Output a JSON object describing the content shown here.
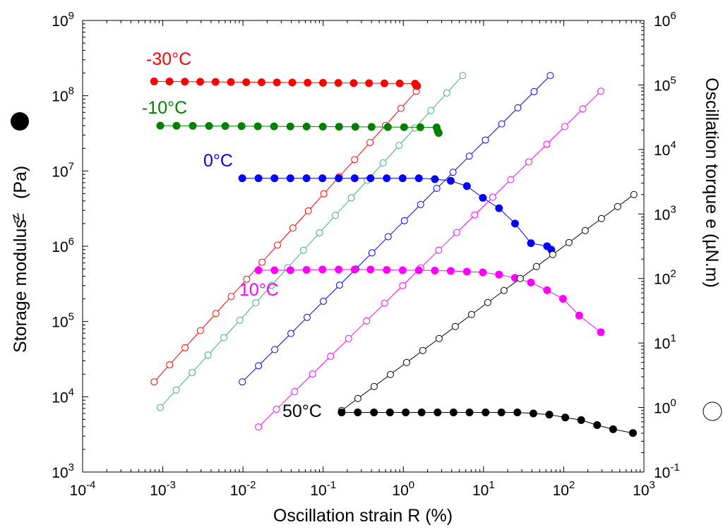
{
  "chart_data": {
    "type": "scatter",
    "xlabel": "Oscillation strain  R (%)",
    "ylabel_left": "Storage modulus",
    "ylabel_left_symbol": "(Pa)",
    "ylabel_right": "Oscillation torque  e  (µN.m)",
    "x_scale": "log",
    "y_left_scale": "log",
    "y_right_scale": "log",
    "xlim": [
      0.0001,
      1000
    ],
    "ylim_left": [
      1000,
      1000000000
    ],
    "ylim_right": [
      0.1,
      1000000
    ],
    "x_ticks": [
      {
        "base": "10",
        "exp": "-4"
      },
      {
        "base": "10",
        "exp": "-3"
      },
      {
        "base": "10",
        "exp": "-2"
      },
      {
        "base": "10",
        "exp": "-1"
      },
      {
        "base": "10",
        "exp": "0"
      },
      {
        "base": "10",
        "exp": "1"
      },
      {
        "base": "10",
        "exp": "2"
      },
      {
        "base": "10",
        "exp": "3"
      }
    ],
    "y_left_ticks": [
      {
        "base": "10",
        "exp": "3"
      },
      {
        "base": "10",
        "exp": "4"
      },
      {
        "base": "10",
        "exp": "5"
      },
      {
        "base": "10",
        "exp": "6"
      },
      {
        "base": "10",
        "exp": "7"
      },
      {
        "base": "10",
        "exp": "8"
      },
      {
        "base": "10",
        "exp": "9"
      }
    ],
    "y_right_ticks": [
      {
        "base": "10",
        "exp": "-1"
      },
      {
        "base": "10",
        "exp": "0"
      },
      {
        "base": "10",
        "exp": "1"
      },
      {
        "base": "10",
        "exp": "2"
      },
      {
        "base": "10",
        "exp": "3"
      },
      {
        "base": "10",
        "exp": "4"
      },
      {
        "base": "10",
        "exp": "5"
      },
      {
        "base": "10",
        "exp": "6"
      }
    ],
    "grid": false,
    "legend": "none",
    "series": [
      {
        "name": "-30°C",
        "color": "#ff0000",
        "modulus": {
          "axis": "left",
          "marker": "filled",
          "start_strain": 0.00078,
          "end_strain": 1.4,
          "start_value": 155000000,
          "end_value": 145000000,
          "count": 18,
          "final_values": [
            137000000,
            135000000
          ]
        },
        "torque": {
          "axis": "right",
          "marker": "open",
          "start_strain": 0.00078,
          "end_strain": 1.45,
          "start_value": 2.5,
          "end_value": 80000,
          "count": 18
        }
      },
      {
        "name": "-10°C",
        "color": "#008000",
        "torque_color": "#3cb371",
        "modulus": {
          "axis": "left",
          "marker": "filled",
          "start_strain": 0.00093,
          "end_strain": 2.6,
          "start_value": 40000000,
          "end_value": 38000000,
          "count": 18,
          "final_values": [
            34000000,
            32000000
          ]
        },
        "torque": {
          "axis": "right",
          "marker": "open",
          "start_strain": 0.00093,
          "end_strain": 5.5,
          "start_value": 1.0,
          "end_value": 140000,
          "count": 20
        }
      },
      {
        "name": "0°C",
        "color": "#0000ff",
        "modulus": {
          "axis": "left",
          "marker": "filled",
          "strain": [
            0.0098,
            0.0156,
            0.0247,
            0.039,
            0.062,
            0.098,
            0.156,
            0.247,
            0.39,
            0.62,
            0.98,
            1.56,
            2.47,
            3.9,
            6.2,
            9.8,
            15.6,
            24.7,
            39,
            62,
            70
          ],
          "value": [
            8000000,
            8000000,
            8000000,
            8000000,
            8000000,
            8000000,
            8000000,
            8000000,
            8000000,
            8000000,
            8000000,
            8000000,
            7800000,
            7400000,
            6300000,
            4400000,
            3200000,
            2000000,
            1100000,
            1000000,
            900000
          ]
        },
        "torque": {
          "axis": "right",
          "marker": "open",
          "start_strain": 0.0098,
          "end_strain": 68,
          "start_value": 2.5,
          "end_value": 140000,
          "count": 20
        }
      },
      {
        "name": "10°C",
        "color": "#ff00ff",
        "modulus": {
          "axis": "left",
          "marker": "filled",
          "strain": [
            0.0156,
            0.0247,
            0.039,
            0.062,
            0.098,
            0.156,
            0.247,
            0.39,
            0.62,
            0.98,
            1.56,
            2.47,
            3.9,
            6.2,
            9.8,
            15.6,
            24.7,
            39,
            62,
            98,
            156,
            290
          ],
          "value": [
            480000,
            480000,
            480000,
            485000,
            490000,
            490000,
            490000,
            490000,
            485000,
            480000,
            480000,
            475000,
            470000,
            460000,
            450000,
            420000,
            380000,
            330000,
            260000,
            200000,
            120000,
            72000
          ]
        },
        "torque": {
          "axis": "right",
          "marker": "open",
          "start_strain": 0.0156,
          "end_strain": 290,
          "start_value": 0.5,
          "end_value": 80000,
          "count": 20
        }
      },
      {
        "name": "50°C",
        "color": "#000000",
        "modulus": {
          "axis": "left",
          "marker": "filled",
          "strain": [
            0.17,
            0.27,
            0.43,
            0.68,
            1.07,
            1.69,
            2.67,
            4.22,
            6.68,
            10.6,
            16.7,
            26.4,
            41.8,
            66.1,
            104.5,
            165,
            261,
            413,
            730
          ],
          "value": [
            6200,
            6200,
            6200,
            6200,
            6200,
            6200,
            6200,
            6200,
            6200,
            6200,
            6200,
            6200,
            6000,
            5800,
            5300,
            4900,
            4200,
            3700,
            3300
          ]
        },
        "torque": {
          "axis": "right",
          "marker": "open",
          "start_strain": 0.17,
          "end_strain": 750,
          "start_value": 0.9,
          "end_value": 2000,
          "count": 19
        }
      }
    ]
  }
}
